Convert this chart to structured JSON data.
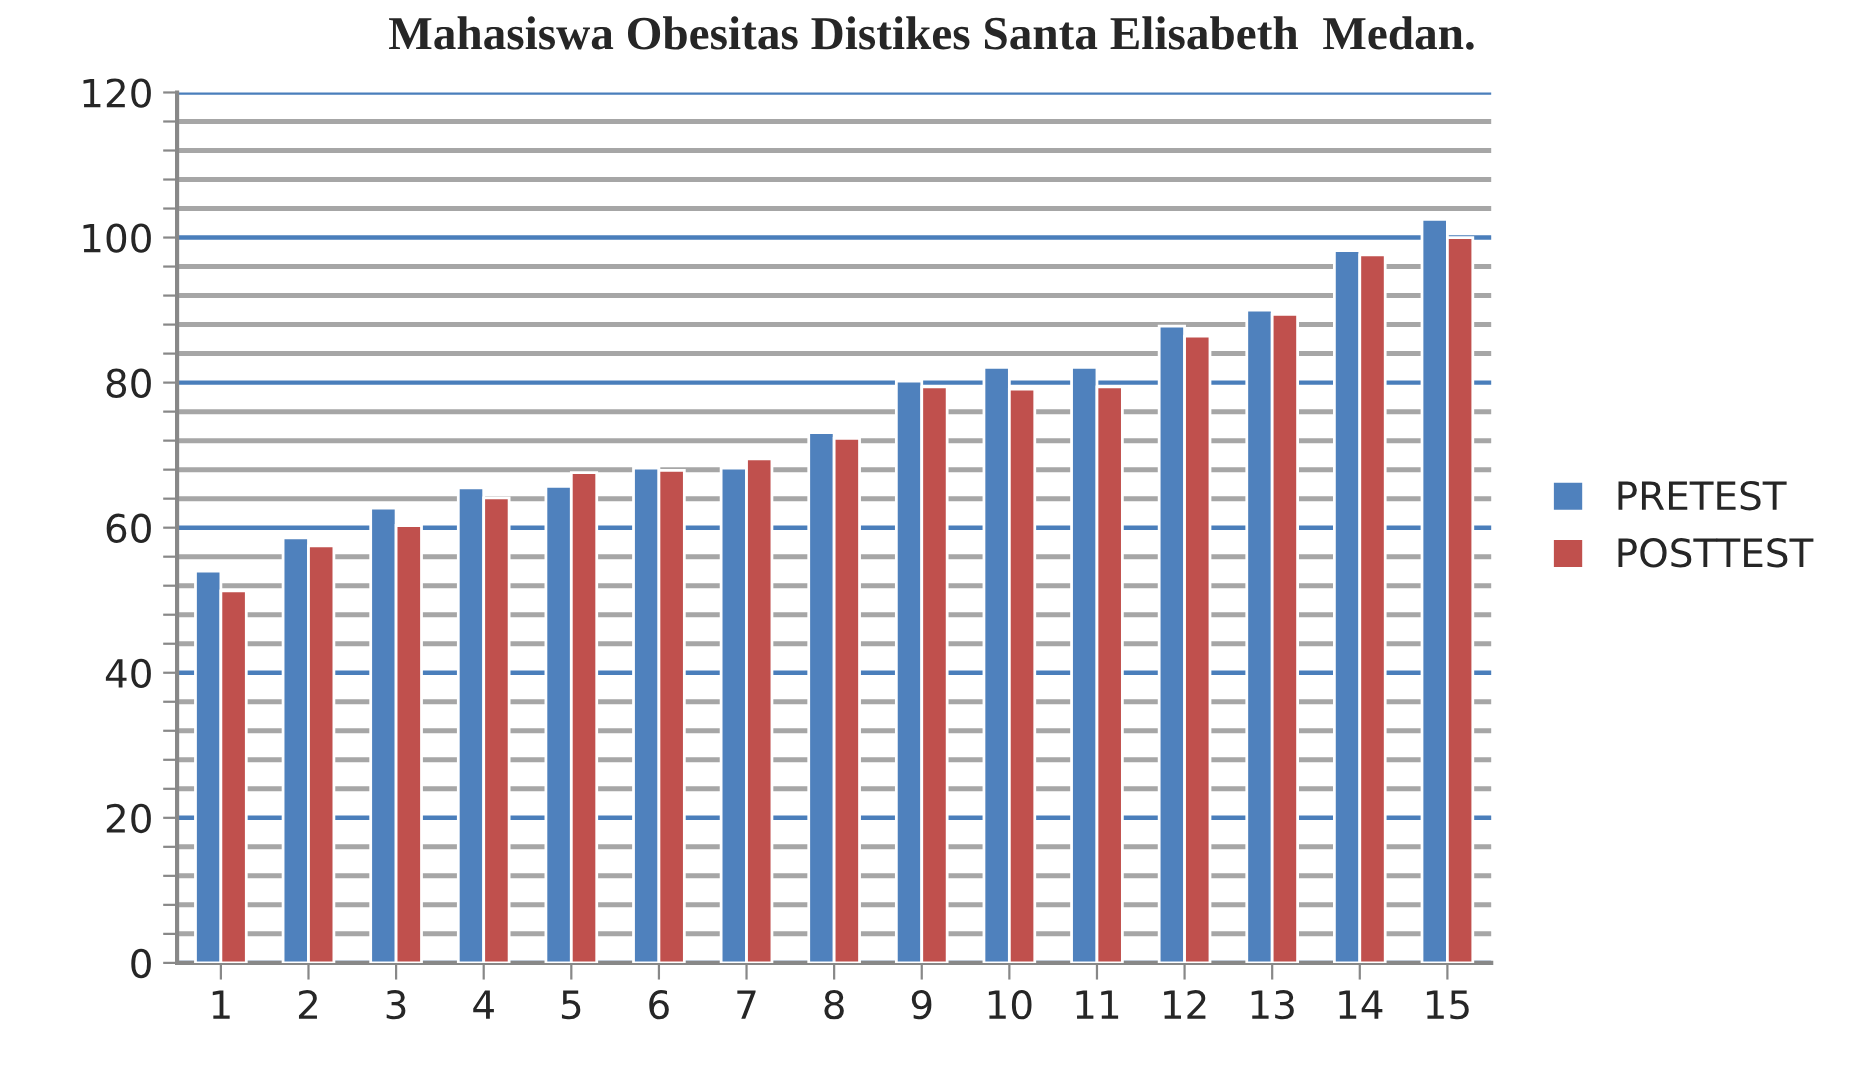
{
  "chart_data": {
    "type": "bar",
    "title": "Mahasiswa Obesitas Distikes Santa Elisabeth  Medan.",
    "categories": [
      "1",
      "2",
      "3",
      "4",
      "5",
      "6",
      "7",
      "8",
      "9",
      "10",
      "11",
      "12",
      "13",
      "14",
      "15"
    ],
    "series": [
      {
        "name": "PRETEST",
        "color": "#4f81bd",
        "values": [
          54,
          58.6,
          62.7,
          65.5,
          65.7,
          68.2,
          68.2,
          73.1,
          80.2,
          82.1,
          82.1,
          87.8,
          90,
          98.2,
          102.5
        ]
      },
      {
        "name": "POSTTEST",
        "color": "#c0504d",
        "values": [
          51.3,
          57.5,
          60.3,
          64.1,
          67.6,
          67.9,
          69.5,
          72.3,
          79.4,
          79.1,
          79.4,
          86.4,
          89.4,
          97.6,
          100
        ]
      }
    ],
    "ylim": [
      0,
      120
    ],
    "yticks": [
      0,
      {
        "value": 4,
        "label": null
      },
      {
        "value": 8,
        "label": null
      },
      {
        "value": 12,
        "label": null
      },
      {
        "value": 16,
        "label": null
      },
      20,
      {
        "value": 24,
        "label": null
      },
      {
        "value": 28,
        "label": null
      },
      {
        "value": 32,
        "label": null
      },
      {
        "value": 36,
        "label": null
      },
      40,
      {
        "value": 44,
        "label": null
      },
      {
        "value": 48,
        "label": null
      },
      {
        "value": 52,
        "label": null
      },
      {
        "value": 56,
        "label": null
      },
      60,
      {
        "value": 64,
        "label": null
      },
      {
        "value": 68,
        "label": null
      },
      {
        "value": 72,
        "label": null
      },
      {
        "value": 76,
        "label": null
      },
      80,
      {
        "value": 84,
        "label": null
      },
      {
        "value": 88,
        "label": null
      },
      {
        "value": 92,
        "label": null
      },
      {
        "value": 96,
        "label": null
      },
      100,
      {
        "value": 104,
        "label": null
      },
      {
        "value": 108,
        "label": null
      },
      {
        "value": 112,
        "label": null
      },
      {
        "value": 116,
        "label": null
      },
      120
    ],
    "grid": "y",
    "legend": "right"
  }
}
